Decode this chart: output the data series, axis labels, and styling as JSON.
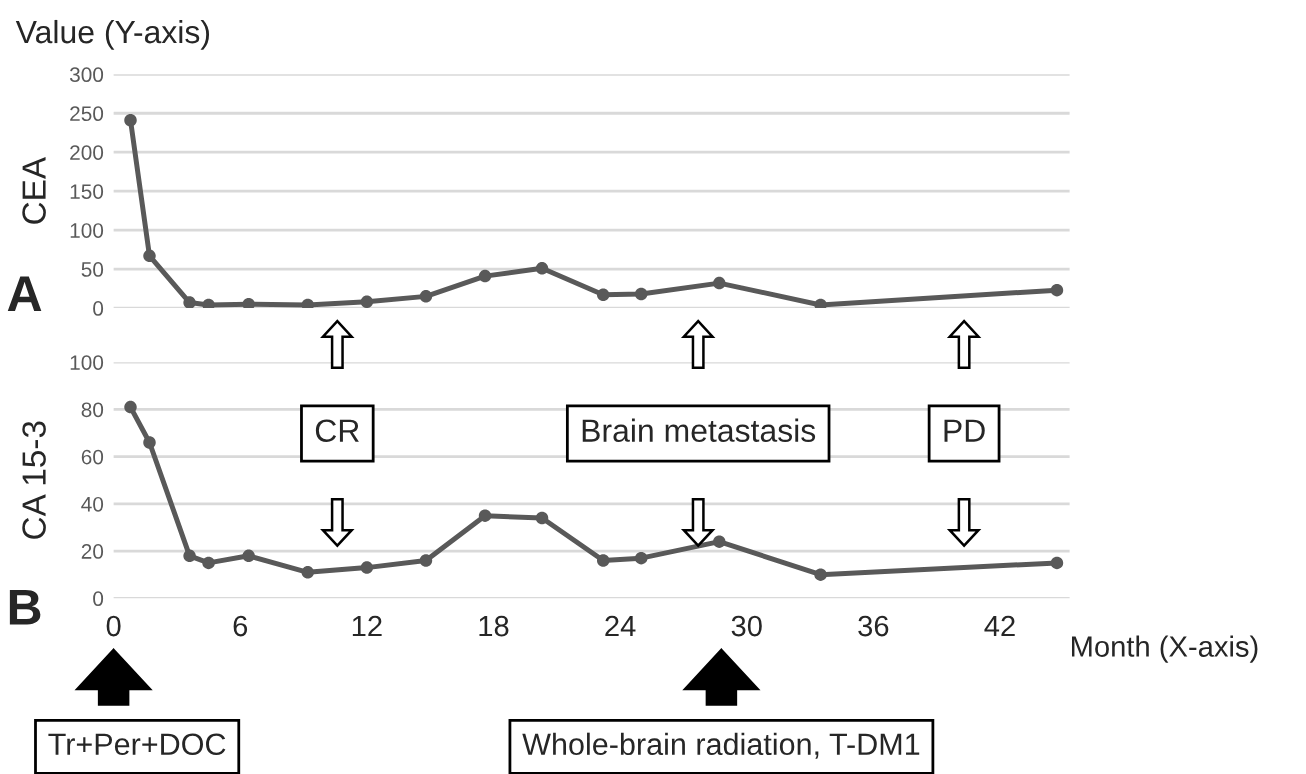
{
  "chart_data": [
    {
      "type": "line",
      "ylabel": "CEA",
      "x": [
        0.8,
        1.7,
        3.6,
        4.5,
        6.4,
        9.2,
        12.0,
        14.8,
        17.6,
        20.3,
        23.2,
        25.0,
        28.7,
        33.5,
        44.7
      ],
      "series": [
        {
          "color": "#595959",
          "values": [
            241,
            67,
            7,
            4,
            5,
            4,
            8,
            15,
            41,
            51,
            17,
            18,
            32,
            4,
            23
          ]
        }
      ],
      "xlim": [
        0,
        45.3
      ],
      "xticks": [
        0,
        6,
        12,
        18,
        24,
        30,
        36,
        42
      ],
      "ylim": [
        0,
        300
      ],
      "yticks": [
        0,
        50,
        100,
        150,
        200,
        250,
        300
      ],
      "grid": "y",
      "marker": "circle",
      "line_style": "solid",
      "tick_labels": "y",
      "annotations": [
        "Value (Y-axis)",
        "A",
        "CR",
        "Brain metastasis",
        "PD"
      ]
    },
    {
      "type": "line",
      "ylabel": "CA 15-3",
      "xlabel": "Month (X-axis)",
      "x": [
        0.8,
        1.7,
        3.6,
        4.5,
        6.4,
        9.2,
        12.0,
        14.8,
        17.6,
        20.3,
        23.2,
        25.0,
        28.7,
        33.5,
        44.7
      ],
      "series": [
        {
          "color": "#595959",
          "values": [
            81,
            66,
            18,
            15,
            18,
            11,
            13,
            16,
            35,
            34,
            16,
            17,
            24,
            10,
            15
          ]
        }
      ],
      "xlim": [
        0,
        45.3
      ],
      "xticks": [
        0,
        6,
        12,
        18,
        24,
        30,
        36,
        42
      ],
      "ylim": [
        0,
        100
      ],
      "yticks": [
        0,
        20,
        40,
        60,
        80,
        100
      ],
      "grid": "y",
      "marker": "circle",
      "line_style": "solid",
      "annotations": [
        "B",
        "Tr+Per+DOC",
        "Whole-brain radiation, T-DM1"
      ]
    }
  ]
}
